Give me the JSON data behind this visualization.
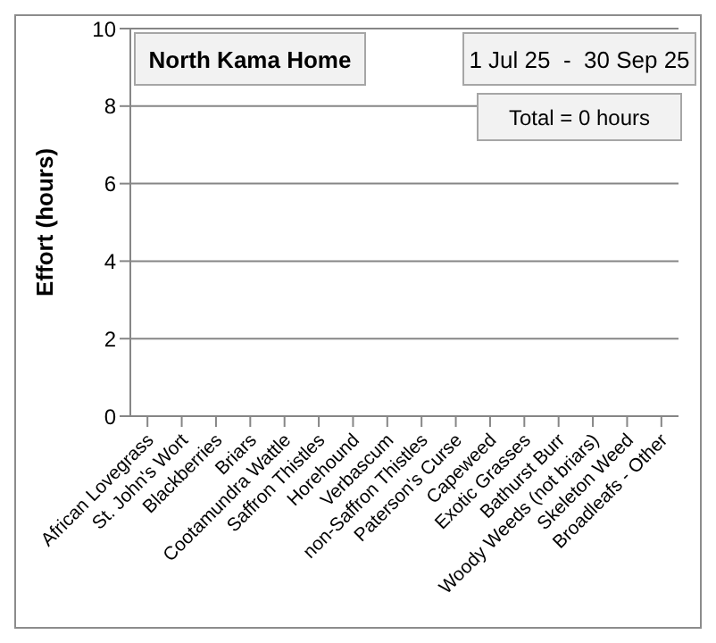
{
  "chart_data": {
    "type": "bar",
    "title": "North Kama Home",
    "subtitle": "1 Jul 25  -  30 Sep 25",
    "ylabel": "Effort (hours)",
    "categories": [
      "African Lovegrass",
      "St. John's Wort",
      "Blackberries",
      "Briars",
      "Cootamundra Wattle",
      "Saffron Thistles",
      "Horehound",
      "Verbascum",
      "non-Saffron Thistles",
      "Paterson's Curse",
      "Capeweed",
      "Exotic Grasses",
      "Bathurst Burr",
      "Woody Weeds (not briars)",
      "Skeleton Weed",
      "Broadleafs - Other"
    ],
    "values": [
      0,
      0,
      0,
      0,
      0,
      0,
      0,
      0,
      0,
      0,
      0,
      0,
      0,
      0,
      0,
      0
    ],
    "ylim": [
      0,
      10
    ],
    "yticks": [
      0,
      2,
      4,
      6,
      8,
      10
    ],
    "grid": "y",
    "annotations": [
      "Total = 0 hours"
    ]
  }
}
